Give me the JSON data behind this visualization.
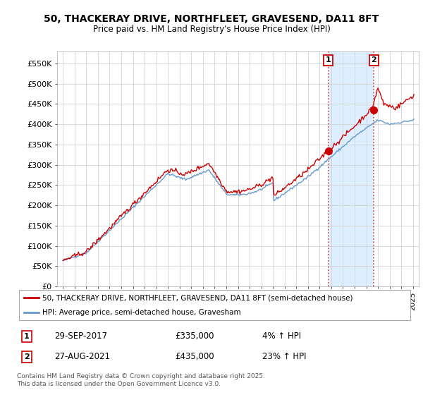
{
  "title_line1": "50, THACKERAY DRIVE, NORTHFLEET, GRAVESEND, DA11 8FT",
  "title_line2": "Price paid vs. HM Land Registry's House Price Index (HPI)",
  "ylabel_ticks": [
    "£0",
    "£50K",
    "£100K",
    "£150K",
    "£200K",
    "£250K",
    "£300K",
    "£350K",
    "£400K",
    "£450K",
    "£500K",
    "£550K"
  ],
  "ytick_vals": [
    0,
    50000,
    100000,
    150000,
    200000,
    250000,
    300000,
    350000,
    400000,
    450000,
    500000,
    550000
  ],
  "ylim": [
    0,
    580000
  ],
  "xlim_start": 1994.5,
  "xlim_end": 2025.5,
  "sale1_year": 2017.75,
  "sale1_price": 335000,
  "sale1_label": "1",
  "sale2_year": 2021.65,
  "sale2_price": 435000,
  "sale2_label": "2",
  "legend_line1": "50, THACKERAY DRIVE, NORTHFLEET, GRAVESEND, DA11 8FT (semi-detached house)",
  "legend_line2": "HPI: Average price, semi-detached house, Gravesham",
  "footer": "Contains HM Land Registry data © Crown copyright and database right 2025.\nThis data is licensed under the Open Government Licence v3.0.",
  "line_red": "#cc0000",
  "line_blue": "#6699cc",
  "shade_color": "#ddeeff",
  "bg_color": "#ffffff",
  "grid_color": "#cccccc"
}
